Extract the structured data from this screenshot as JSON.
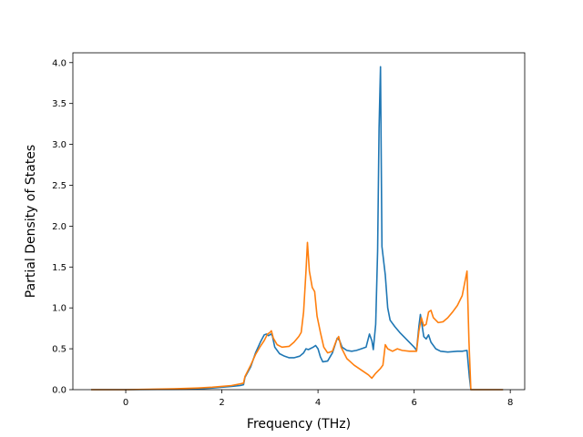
{
  "chart_data": {
    "type": "line",
    "title": "",
    "xlabel": "Frequency (THz)",
    "ylabel": "Partial Density of States",
    "xlim": [
      -1.1,
      8.3
    ],
    "ylim": [
      0.0,
      4.12
    ],
    "xticks": [
      0,
      2,
      4,
      6,
      8
    ],
    "yticks": [
      0.0,
      0.5,
      1.0,
      1.5,
      2.0,
      2.5,
      3.0,
      3.5,
      4.0
    ],
    "xtick_labels": [
      "0",
      "2",
      "4",
      "6",
      "8"
    ],
    "ytick_labels": [
      "0.0",
      "0.5",
      "1.0",
      "1.5",
      "2.0",
      "2.5",
      "3.0",
      "3.5",
      "4.0"
    ],
    "grid": false,
    "legend": "none",
    "series": [
      {
        "color": "#1f77b4",
        "points": [
          [
            -0.72,
            0.0
          ],
          [
            0.0,
            0.0
          ],
          [
            1.0,
            0.005
          ],
          [
            1.5,
            0.01
          ],
          [
            1.8,
            0.02
          ],
          [
            2.0,
            0.03
          ],
          [
            2.2,
            0.04
          ],
          [
            2.38,
            0.05
          ],
          [
            2.45,
            0.06
          ],
          [
            2.48,
            0.15
          ],
          [
            2.6,
            0.28
          ],
          [
            2.7,
            0.45
          ],
          [
            2.8,
            0.58
          ],
          [
            2.88,
            0.67
          ],
          [
            2.93,
            0.68
          ],
          [
            2.97,
            0.66
          ],
          [
            3.02,
            0.68
          ],
          [
            3.05,
            0.66
          ],
          [
            3.1,
            0.52
          ],
          [
            3.2,
            0.44
          ],
          [
            3.3,
            0.41
          ],
          [
            3.4,
            0.39
          ],
          [
            3.5,
            0.39
          ],
          [
            3.62,
            0.41
          ],
          [
            3.7,
            0.45
          ],
          [
            3.75,
            0.5
          ],
          [
            3.8,
            0.49
          ],
          [
            3.9,
            0.52
          ],
          [
            3.95,
            0.54
          ],
          [
            4.0,
            0.5
          ],
          [
            4.05,
            0.4
          ],
          [
            4.1,
            0.34
          ],
          [
            4.2,
            0.35
          ],
          [
            4.3,
            0.45
          ],
          [
            4.4,
            0.63
          ],
          [
            4.45,
            0.6
          ],
          [
            4.5,
            0.52
          ],
          [
            4.6,
            0.48
          ],
          [
            4.7,
            0.47
          ],
          [
            4.8,
            0.48
          ],
          [
            4.9,
            0.5
          ],
          [
            5.0,
            0.52
          ],
          [
            5.07,
            0.68
          ],
          [
            5.12,
            0.6
          ],
          [
            5.15,
            0.49
          ],
          [
            5.2,
            0.8
          ],
          [
            5.24,
            1.7
          ],
          [
            5.27,
            3.2
          ],
          [
            5.3,
            3.95
          ],
          [
            5.33,
            1.75
          ],
          [
            5.4,
            1.4
          ],
          [
            5.45,
            1.0
          ],
          [
            5.5,
            0.85
          ],
          [
            5.6,
            0.77
          ],
          [
            5.7,
            0.7
          ],
          [
            5.8,
            0.64
          ],
          [
            5.9,
            0.58
          ],
          [
            6.0,
            0.52
          ],
          [
            6.05,
            0.48
          ],
          [
            6.1,
            0.78
          ],
          [
            6.13,
            0.92
          ],
          [
            6.2,
            0.65
          ],
          [
            6.25,
            0.62
          ],
          [
            6.3,
            0.67
          ],
          [
            6.35,
            0.58
          ],
          [
            6.45,
            0.5
          ],
          [
            6.55,
            0.47
          ],
          [
            6.7,
            0.46
          ],
          [
            6.9,
            0.47
          ],
          [
            7.0,
            0.47
          ],
          [
            7.1,
            0.48
          ],
          [
            7.15,
            0.15
          ],
          [
            7.18,
            0.0
          ],
          [
            7.6,
            0.0
          ],
          [
            7.85,
            0.0
          ]
        ]
      },
      {
        "color": "#ff7f0e",
        "points": [
          [
            -0.72,
            0.0
          ],
          [
            0.0,
            0.0
          ],
          [
            1.0,
            0.01
          ],
          [
            1.5,
            0.02
          ],
          [
            1.8,
            0.03
          ],
          [
            2.0,
            0.04
          ],
          [
            2.2,
            0.05
          ],
          [
            2.38,
            0.07
          ],
          [
            2.45,
            0.08
          ],
          [
            2.48,
            0.16
          ],
          [
            2.6,
            0.3
          ],
          [
            2.7,
            0.43
          ],
          [
            2.8,
            0.53
          ],
          [
            2.88,
            0.6
          ],
          [
            2.95,
            0.68
          ],
          [
            3.0,
            0.7
          ],
          [
            3.03,
            0.72
          ],
          [
            3.07,
            0.63
          ],
          [
            3.15,
            0.55
          ],
          [
            3.25,
            0.52
          ],
          [
            3.4,
            0.53
          ],
          [
            3.5,
            0.58
          ],
          [
            3.6,
            0.65
          ],
          [
            3.65,
            0.7
          ],
          [
            3.7,
            0.95
          ],
          [
            3.75,
            1.45
          ],
          [
            3.78,
            1.8
          ],
          [
            3.82,
            1.45
          ],
          [
            3.88,
            1.25
          ],
          [
            3.93,
            1.2
          ],
          [
            3.98,
            0.9
          ],
          [
            4.05,
            0.7
          ],
          [
            4.12,
            0.52
          ],
          [
            4.2,
            0.45
          ],
          [
            4.3,
            0.47
          ],
          [
            4.38,
            0.6
          ],
          [
            4.43,
            0.65
          ],
          [
            4.48,
            0.52
          ],
          [
            4.6,
            0.38
          ],
          [
            4.75,
            0.3
          ],
          [
            4.9,
            0.24
          ],
          [
            5.05,
            0.18
          ],
          [
            5.12,
            0.14
          ],
          [
            5.2,
            0.2
          ],
          [
            5.3,
            0.26
          ],
          [
            5.35,
            0.3
          ],
          [
            5.4,
            0.55
          ],
          [
            5.45,
            0.5
          ],
          [
            5.55,
            0.47
          ],
          [
            5.65,
            0.5
          ],
          [
            5.75,
            0.48
          ],
          [
            5.9,
            0.47
          ],
          [
            6.05,
            0.47
          ],
          [
            6.1,
            0.72
          ],
          [
            6.15,
            0.88
          ],
          [
            6.2,
            0.78
          ],
          [
            6.25,
            0.8
          ],
          [
            6.3,
            0.95
          ],
          [
            6.35,
            0.97
          ],
          [
            6.4,
            0.88
          ],
          [
            6.5,
            0.82
          ],
          [
            6.6,
            0.83
          ],
          [
            6.7,
            0.88
          ],
          [
            6.8,
            0.95
          ],
          [
            6.9,
            1.03
          ],
          [
            7.0,
            1.15
          ],
          [
            7.05,
            1.3
          ],
          [
            7.1,
            1.45
          ],
          [
            7.14,
            0.6
          ],
          [
            7.18,
            0.0
          ],
          [
            7.6,
            0.0
          ],
          [
            7.85,
            0.0
          ]
        ]
      }
    ]
  }
}
